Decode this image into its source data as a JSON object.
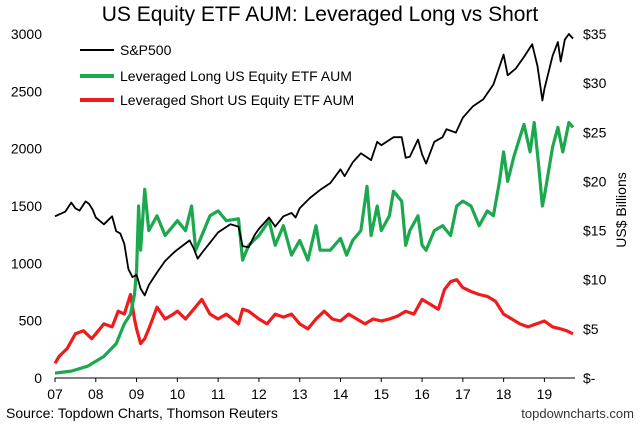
{
  "chart_data": {
    "type": "line",
    "title": "US Equity ETF AUM: Leveraged Long vs Short",
    "y2label": "US$ Billions",
    "source": "Source: Topdown Charts, Thomson Reuters",
    "credit": "topdowncharts.com",
    "x_ticks": [
      "07",
      "08",
      "09",
      "10",
      "11",
      "12",
      "13",
      "14",
      "15",
      "16",
      "17",
      "18",
      "19"
    ],
    "x_range": [
      2007.0,
      2019.75
    ],
    "y_left": {
      "ticks": [
        "0",
        "500",
        "1000",
        "1500",
        "2000",
        "2500",
        "3000"
      ],
      "range": [
        0,
        3000
      ]
    },
    "y_right": {
      "ticks": [
        "$-",
        "$5",
        "$10",
        "$15",
        "$20",
        "$25",
        "$30",
        "$35"
      ],
      "range": [
        0,
        35
      ]
    },
    "legend": {
      "placement": "top-left"
    },
    "series": [
      {
        "name": "S&P500",
        "axis": "left",
        "color": "#000000",
        "points": [
          [
            2007.0,
            1410
          ],
          [
            2007.25,
            1450
          ],
          [
            2007.4,
            1530
          ],
          [
            2007.5,
            1480
          ],
          [
            2007.6,
            1460
          ],
          [
            2007.75,
            1540
          ],
          [
            2007.83,
            1520
          ],
          [
            2007.92,
            1470
          ],
          [
            2008.0,
            1400
          ],
          [
            2008.2,
            1340
          ],
          [
            2008.4,
            1410
          ],
          [
            2008.5,
            1280
          ],
          [
            2008.6,
            1260
          ],
          [
            2008.7,
            1170
          ],
          [
            2008.8,
            950
          ],
          [
            2008.9,
            880
          ],
          [
            2009.0,
            900
          ],
          [
            2009.1,
            780
          ],
          [
            2009.2,
            720
          ],
          [
            2009.3,
            810
          ],
          [
            2009.5,
            920
          ],
          [
            2009.7,
            1020
          ],
          [
            2009.9,
            1090
          ],
          [
            2010.0,
            1120
          ],
          [
            2010.3,
            1200
          ],
          [
            2010.4,
            1130
          ],
          [
            2010.5,
            1040
          ],
          [
            2010.6,
            1090
          ],
          [
            2010.8,
            1180
          ],
          [
            2011.0,
            1270
          ],
          [
            2011.3,
            1340
          ],
          [
            2011.5,
            1320
          ],
          [
            2011.6,
            1150
          ],
          [
            2011.75,
            1140
          ],
          [
            2011.9,
            1250
          ],
          [
            2012.0,
            1300
          ],
          [
            2012.25,
            1400
          ],
          [
            2012.4,
            1320
          ],
          [
            2012.6,
            1410
          ],
          [
            2012.8,
            1440
          ],
          [
            2012.9,
            1400
          ],
          [
            2013.0,
            1480
          ],
          [
            2013.25,
            1570
          ],
          [
            2013.5,
            1640
          ],
          [
            2013.75,
            1700
          ],
          [
            2014.0,
            1820
          ],
          [
            2014.1,
            1760
          ],
          [
            2014.3,
            1880
          ],
          [
            2014.5,
            1960
          ],
          [
            2014.75,
            1900
          ],
          [
            2014.9,
            2060
          ],
          [
            2015.0,
            2030
          ],
          [
            2015.3,
            2100
          ],
          [
            2015.5,
            2100
          ],
          [
            2015.6,
            1920
          ],
          [
            2015.7,
            1930
          ],
          [
            2015.9,
            2080
          ],
          [
            2016.0,
            1950
          ],
          [
            2016.1,
            1870
          ],
          [
            2016.3,
            2060
          ],
          [
            2016.5,
            2100
          ],
          [
            2016.6,
            2170
          ],
          [
            2016.83,
            2140
          ],
          [
            2017.0,
            2270
          ],
          [
            2017.25,
            2370
          ],
          [
            2017.5,
            2430
          ],
          [
            2017.75,
            2560
          ],
          [
            2018.0,
            2820
          ],
          [
            2018.1,
            2640
          ],
          [
            2018.3,
            2700
          ],
          [
            2018.5,
            2800
          ],
          [
            2018.7,
            2910
          ],
          [
            2018.83,
            2720
          ],
          [
            2018.95,
            2420
          ],
          [
            2019.0,
            2520
          ],
          [
            2019.2,
            2810
          ],
          [
            2019.33,
            2930
          ],
          [
            2019.4,
            2760
          ],
          [
            2019.5,
            2950
          ],
          [
            2019.6,
            3000
          ],
          [
            2019.7,
            2960
          ]
        ]
      },
      {
        "name": "Leveraged Long US Equity ETF AUM",
        "axis": "right",
        "color": "#1ca84e",
        "points": [
          [
            2007.0,
            0.5
          ],
          [
            2007.4,
            0.7
          ],
          [
            2007.8,
            1.2
          ],
          [
            2008.2,
            2.2
          ],
          [
            2008.5,
            3.5
          ],
          [
            2008.7,
            5.5
          ],
          [
            2008.85,
            6.5
          ],
          [
            2008.95,
            8.5
          ],
          [
            2009.0,
            11.0
          ],
          [
            2009.05,
            17.5
          ],
          [
            2009.1,
            13.0
          ],
          [
            2009.2,
            19.2
          ],
          [
            2009.3,
            15.0
          ],
          [
            2009.5,
            16.5
          ],
          [
            2009.7,
            14.5
          ],
          [
            2009.9,
            15.5
          ],
          [
            2010.0,
            16.0
          ],
          [
            2010.2,
            15.0
          ],
          [
            2010.35,
            17.5
          ],
          [
            2010.45,
            13.0
          ],
          [
            2010.6,
            14.5
          ],
          [
            2010.8,
            16.5
          ],
          [
            2011.0,
            17.0
          ],
          [
            2011.2,
            16.0
          ],
          [
            2011.5,
            16.2
          ],
          [
            2011.6,
            12.0
          ],
          [
            2011.75,
            13.5
          ],
          [
            2012.0,
            14.5
          ],
          [
            2012.25,
            16.0
          ],
          [
            2012.4,
            13.5
          ],
          [
            2012.6,
            15.5
          ],
          [
            2012.8,
            12.5
          ],
          [
            2013.0,
            14.0
          ],
          [
            2013.2,
            12.0
          ],
          [
            2013.4,
            15.5
          ],
          [
            2013.5,
            13.0
          ],
          [
            2013.75,
            13.0
          ],
          [
            2014.0,
            14.2
          ],
          [
            2014.15,
            12.5
          ],
          [
            2014.3,
            14.0
          ],
          [
            2014.5,
            15.0
          ],
          [
            2014.65,
            19.5
          ],
          [
            2014.75,
            14.5
          ],
          [
            2014.9,
            17.5
          ],
          [
            2015.0,
            15.0
          ],
          [
            2015.2,
            16.5
          ],
          [
            2015.3,
            19.0
          ],
          [
            2015.5,
            18.0
          ],
          [
            2015.6,
            13.5
          ],
          [
            2015.7,
            15.0
          ],
          [
            2015.9,
            16.5
          ],
          [
            2016.0,
            13.5
          ],
          [
            2016.1,
            13.0
          ],
          [
            2016.3,
            15.0
          ],
          [
            2016.5,
            15.5
          ],
          [
            2016.7,
            14.5
          ],
          [
            2016.85,
            17.5
          ],
          [
            2017.0,
            18.0
          ],
          [
            2017.2,
            17.5
          ],
          [
            2017.4,
            15.5
          ],
          [
            2017.6,
            17.0
          ],
          [
            2017.75,
            16.5
          ],
          [
            2017.9,
            20.0
          ],
          [
            2018.0,
            23.0
          ],
          [
            2018.1,
            20.0
          ],
          [
            2018.25,
            22.5
          ],
          [
            2018.4,
            24.5
          ],
          [
            2018.5,
            25.8
          ],
          [
            2018.65,
            23.0
          ],
          [
            2018.75,
            26.0
          ],
          [
            2018.85,
            22.0
          ],
          [
            2018.95,
            17.5
          ],
          [
            2019.0,
            18.5
          ],
          [
            2019.2,
            23.5
          ],
          [
            2019.33,
            25.5
          ],
          [
            2019.45,
            23.0
          ],
          [
            2019.6,
            26.0
          ],
          [
            2019.7,
            25.5
          ]
        ]
      },
      {
        "name": "Leveraged Short US Equity ETF AUM",
        "axis": "right",
        "color": "#ee1c1c",
        "points": [
          [
            2007.0,
            1.5
          ],
          [
            2007.1,
            2.2
          ],
          [
            2007.3,
            3.0
          ],
          [
            2007.5,
            4.5
          ],
          [
            2007.7,
            4.8
          ],
          [
            2007.9,
            4.0
          ],
          [
            2008.0,
            4.5
          ],
          [
            2008.2,
            5.5
          ],
          [
            2008.4,
            5.2
          ],
          [
            2008.55,
            6.8
          ],
          [
            2008.7,
            6.5
          ],
          [
            2008.85,
            8.5
          ],
          [
            2008.95,
            6.0
          ],
          [
            2009.0,
            5.0
          ],
          [
            2009.1,
            3.5
          ],
          [
            2009.2,
            4.0
          ],
          [
            2009.3,
            5.0
          ],
          [
            2009.5,
            7.2
          ],
          [
            2009.7,
            6.0
          ],
          [
            2009.9,
            6.5
          ],
          [
            2010.0,
            6.8
          ],
          [
            2010.2,
            6.0
          ],
          [
            2010.4,
            7.0
          ],
          [
            2010.6,
            8.0
          ],
          [
            2010.8,
            6.5
          ],
          [
            2011.0,
            6.0
          ],
          [
            2011.2,
            6.5
          ],
          [
            2011.5,
            5.5
          ],
          [
            2011.6,
            7.0
          ],
          [
            2011.75,
            6.8
          ],
          [
            2012.0,
            6.0
          ],
          [
            2012.2,
            5.5
          ],
          [
            2012.4,
            6.5
          ],
          [
            2012.6,
            6.2
          ],
          [
            2012.8,
            6.5
          ],
          [
            2013.0,
            5.5
          ],
          [
            2013.2,
            5.0
          ],
          [
            2013.4,
            6.0
          ],
          [
            2013.6,
            6.8
          ],
          [
            2013.8,
            6.0
          ],
          [
            2014.0,
            5.8
          ],
          [
            2014.2,
            6.5
          ],
          [
            2014.4,
            6.0
          ],
          [
            2014.6,
            5.5
          ],
          [
            2014.8,
            6.0
          ],
          [
            2015.0,
            5.8
          ],
          [
            2015.2,
            6.0
          ],
          [
            2015.4,
            6.3
          ],
          [
            2015.6,
            6.8
          ],
          [
            2015.8,
            6.5
          ],
          [
            2016.0,
            8.0
          ],
          [
            2016.2,
            7.5
          ],
          [
            2016.4,
            7.0
          ],
          [
            2016.55,
            9.0
          ],
          [
            2016.7,
            9.8
          ],
          [
            2016.85,
            10.0
          ],
          [
            2017.0,
            9.2
          ],
          [
            2017.2,
            8.8
          ],
          [
            2017.4,
            8.5
          ],
          [
            2017.6,
            8.3
          ],
          [
            2017.8,
            7.8
          ],
          [
            2018.0,
            6.5
          ],
          [
            2018.2,
            6.0
          ],
          [
            2018.4,
            5.5
          ],
          [
            2018.6,
            5.2
          ],
          [
            2018.8,
            5.5
          ],
          [
            2019.0,
            5.8
          ],
          [
            2019.2,
            5.2
          ],
          [
            2019.4,
            5.0
          ],
          [
            2019.55,
            4.8
          ],
          [
            2019.7,
            4.5
          ]
        ]
      }
    ]
  }
}
